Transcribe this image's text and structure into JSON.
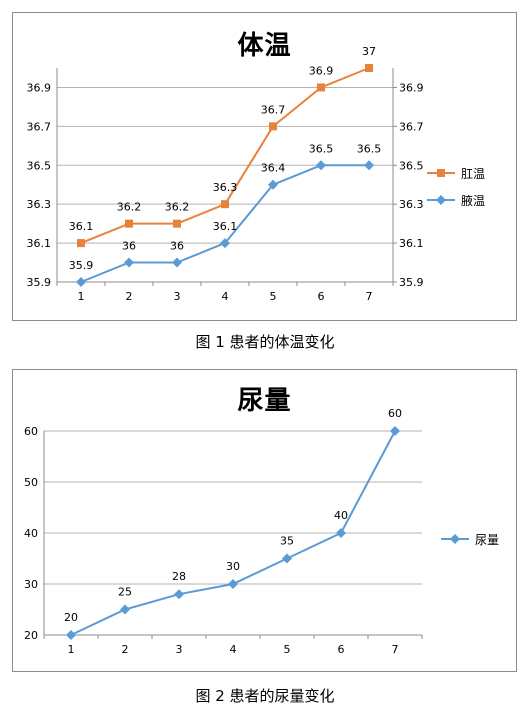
{
  "captions": {
    "fig1": "图 1  患者的体温变化",
    "fig2": "图 2  患者的尿量变化"
  },
  "colors": {
    "orange": "#e8823b",
    "blue": "#5b9bd5",
    "grid": "#b3b3b3",
    "axis": "#8c8c8c"
  },
  "chart_data": [
    {
      "type": "line",
      "title": "体温",
      "categories": [
        "1",
        "2",
        "3",
        "4",
        "5",
        "6",
        "7"
      ],
      "ylim": [
        35.9,
        37.0
      ],
      "yticks": [
        "35.9",
        "36.1",
        "36.3",
        "36.5",
        "36.7",
        "36.9"
      ],
      "secondary_yticks": [
        "35.9",
        "36.1",
        "36.3",
        "36.5",
        "36.7",
        "36.9"
      ],
      "grid": true,
      "legend": "right",
      "series": [
        {
          "name": "肛温",
          "marker": "square",
          "color": "#e8823b",
          "values": [
            36.1,
            36.2,
            36.2,
            36.3,
            36.7,
            36.9,
            37.0
          ],
          "labels": [
            "36.1",
            "36.2",
            "36.2",
            "36.3",
            "36.7",
            "36.9",
            "37"
          ]
        },
        {
          "name": "腋温",
          "marker": "diamond",
          "color": "#5b9bd5",
          "values": [
            35.9,
            36.0,
            36.0,
            36.1,
            36.4,
            36.5,
            36.5
          ],
          "labels": [
            "35.9",
            "36",
            "36",
            "36.1",
            "36.4",
            "36.5",
            "36.5"
          ]
        }
      ]
    },
    {
      "type": "line",
      "title": "尿量",
      "categories": [
        "1",
        "2",
        "3",
        "4",
        "5",
        "6",
        "7"
      ],
      "ylim": [
        20,
        60
      ],
      "yticks": [
        "20",
        "30",
        "40",
        "50",
        "60"
      ],
      "grid": true,
      "legend": "right",
      "series": [
        {
          "name": "尿量",
          "marker": "diamond",
          "color": "#5b9bd5",
          "values": [
            20,
            25,
            28,
            30,
            35,
            40,
            60
          ],
          "labels": [
            "20",
            "25",
            "28",
            "30",
            "35",
            "40",
            "60"
          ]
        }
      ]
    }
  ]
}
